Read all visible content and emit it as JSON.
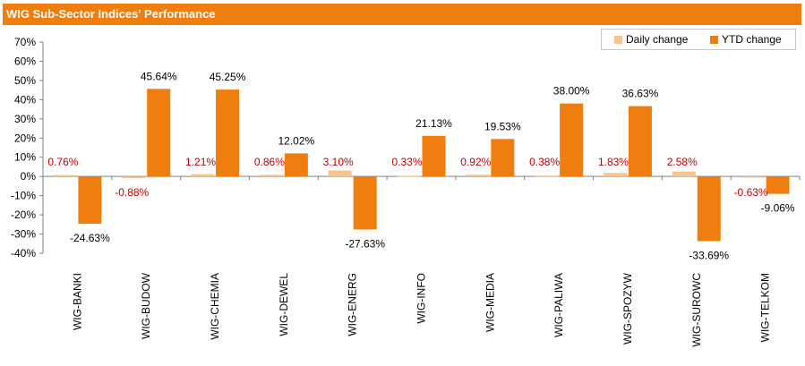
{
  "title": "WIG Sub-Sector Indices' Performance",
  "colors": {
    "title_bg": "#F07E0E",
    "daily": "#F9C38F",
    "ytd": "#F07E0E",
    "daily_label": "#C00000",
    "axis": "#808080"
  },
  "legend": {
    "daily": "Daily change",
    "ytd": "YTD change"
  },
  "chart_data": {
    "type": "bar",
    "title": "WIG Sub-Sector Indices' Performance",
    "categories": [
      "WIG-BANKI",
      "WIG-BUDOW",
      "WIG-CHEMIA",
      "WIG-DEWEL",
      "WIG-ENERG",
      "WIG-INFO",
      "WIG-MEDIA",
      "WIG-PALIWA",
      "WIG-SPOZYW",
      "WIG-SUROWC",
      "WIG-TELKOM"
    ],
    "series": [
      {
        "name": "Daily change",
        "values": [
          0.76,
          -0.88,
          1.21,
          0.86,
          3.1,
          0.33,
          0.92,
          0.38,
          1.83,
          2.58,
          -0.63
        ],
        "labels": [
          "0.76%",
          "-0.88%",
          "1.21%",
          "0.86%",
          "3.10%",
          "0.33%",
          "0.92%",
          "0.38%",
          "1.83%",
          "2.58%",
          "-0.63%"
        ]
      },
      {
        "name": "YTD change",
        "values": [
          -24.63,
          45.64,
          45.25,
          12.02,
          -27.63,
          21.13,
          19.53,
          38.0,
          36.63,
          -33.69,
          -9.06
        ],
        "labels": [
          "-24.63%",
          "45.64%",
          "45.25%",
          "12.02%",
          "-27.63%",
          "21.13%",
          "19.53%",
          "38.00%",
          "36.63%",
          "-33.69%",
          "-9.06%"
        ]
      }
    ],
    "ylim": [
      -40,
      70
    ],
    "yticks": [
      "70%",
      "60%",
      "50%",
      "40%",
      "30%",
      "20%",
      "10%",
      "0%",
      "-10%",
      "-20%",
      "-30%",
      "-40%"
    ],
    "grid": false,
    "legend_position": "top-right"
  }
}
